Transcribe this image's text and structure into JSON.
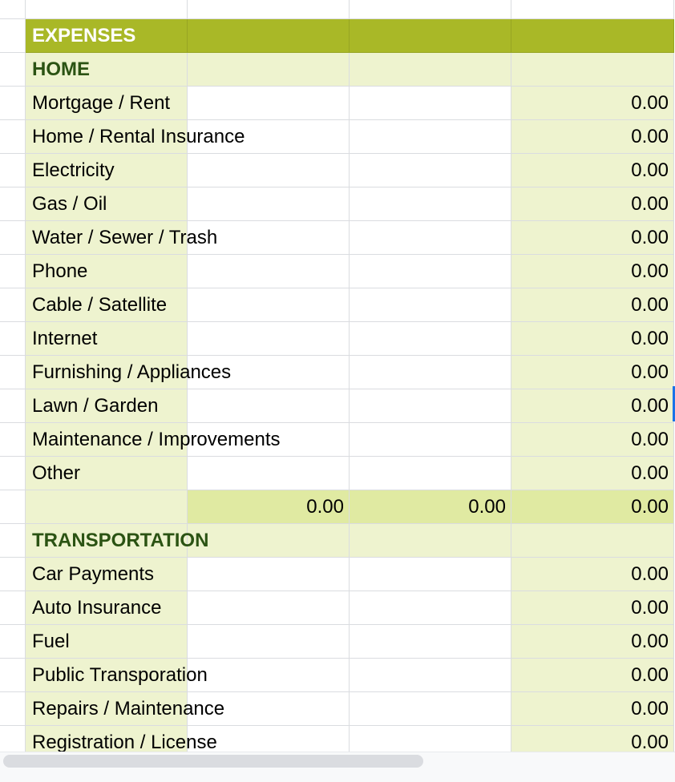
{
  "colors": {
    "header_bg": "#a9b827",
    "light_bg": "#eef3cf",
    "total_bg": "#e0eaa2",
    "category_text": "#2b5313",
    "selection": "#1a73e8"
  },
  "sheet": {
    "title": "EXPENSES",
    "categories": [
      {
        "name": "HOME",
        "items": [
          {
            "label": "Mortgage / Rent",
            "total": "0.00"
          },
          {
            "label": "Home / Rental Insurance",
            "total": "0.00"
          },
          {
            "label": "Electricity",
            "total": "0.00"
          },
          {
            "label": "Gas / Oil",
            "total": "0.00"
          },
          {
            "label": "Water / Sewer / Trash",
            "total": "0.00"
          },
          {
            "label": "Phone",
            "total": "0.00"
          },
          {
            "label": "Cable / Satellite",
            "total": "0.00"
          },
          {
            "label": "Internet",
            "total": "0.00"
          },
          {
            "label": "Furnishing / Appliances",
            "total": "0.00"
          },
          {
            "label": "Lawn / Garden",
            "total": "0.00"
          },
          {
            "label": "Maintenance / Improvements",
            "total": "0.00"
          },
          {
            "label": "Other",
            "total": "0.00"
          }
        ],
        "subtotals": [
          "0.00",
          "0.00",
          "0.00"
        ]
      },
      {
        "name": "TRANSPORTATION",
        "items": [
          {
            "label": "Car Payments",
            "total": "0.00"
          },
          {
            "label": "Auto Insurance",
            "total": "0.00"
          },
          {
            "label": "Fuel",
            "total": "0.00"
          },
          {
            "label": "Public Transporation",
            "total": "0.00"
          },
          {
            "label": "Repairs / Maintenance",
            "total": "0.00"
          },
          {
            "label": "Registration / License",
            "total": "0.00"
          }
        ]
      }
    ]
  }
}
